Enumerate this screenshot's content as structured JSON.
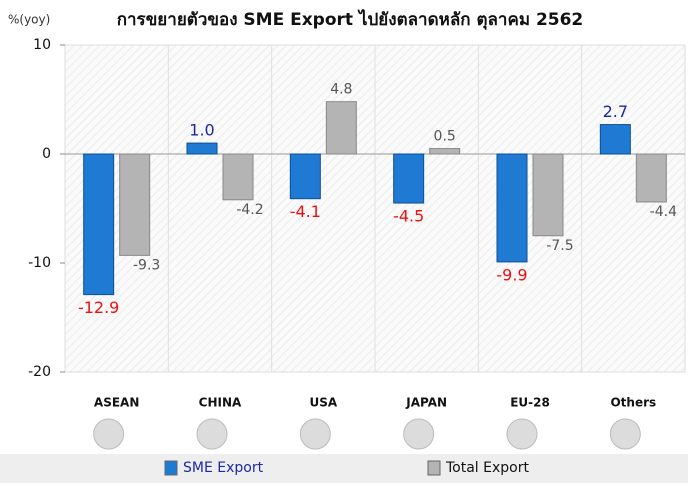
{
  "chart_data": {
    "type": "bar",
    "title": "การขยายตัวของ SME Export ไปยังตลาดหลัก ตุลาคม 2562",
    "y_axis_label": "%(yoy)",
    "categories": [
      "ASEAN",
      "CHINA",
      "USA",
      "JAPAN",
      "EU-28",
      "Others"
    ],
    "series": [
      {
        "name": "SME Export",
        "color": "#1f7ad4",
        "label_color_positive": "#1a2aa0",
        "label_color_negative": "#ee1111",
        "values": [
          -12.9,
          1.0,
          -4.1,
          -4.5,
          -9.9,
          2.7
        ],
        "value_labels": [
          "-12.9",
          "1.0",
          "-4.1",
          "-4.5",
          "-9.9",
          "2.7"
        ]
      },
      {
        "name": "Total Export",
        "color": "#b4b4b4",
        "label_color_positive": "#555555",
        "label_color_negative": "#555555",
        "values": [
          -9.3,
          -4.2,
          4.8,
          0.5,
          -7.5,
          -4.4
        ],
        "value_labels": [
          "-9.3",
          "-4.2",
          "4.8",
          "0.5",
          "-7.5",
          "-4.4"
        ]
      }
    ],
    "ylim": [
      -20,
      10
    ],
    "yticks": [
      -20,
      -10,
      0,
      10
    ],
    "grid": false,
    "legend": "bottom"
  }
}
